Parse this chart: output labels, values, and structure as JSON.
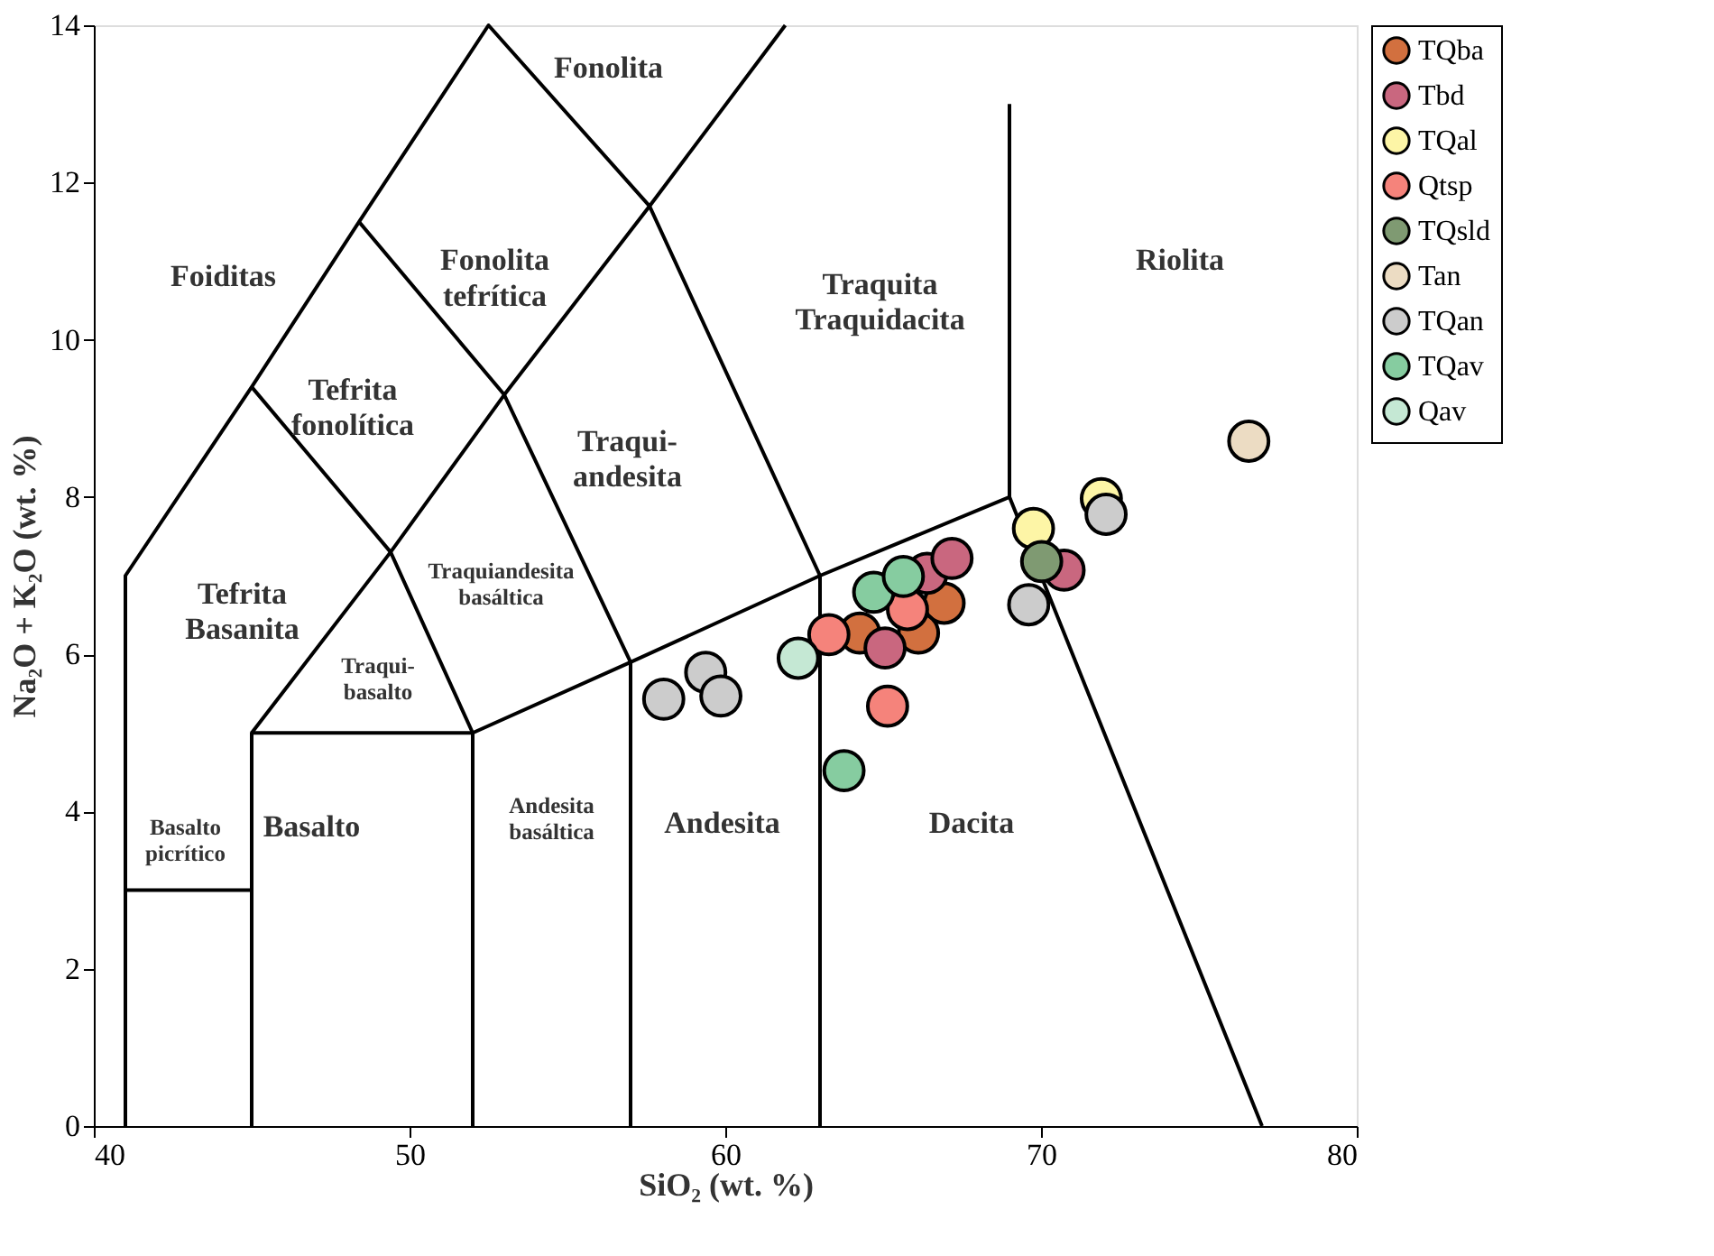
{
  "chart_data": {
    "type": "scatter",
    "xlabel": "SiO₂ (wt. %)",
    "ylabel": "Na₂O + K₂O (wt. %)",
    "xlim": [
      40,
      80
    ],
    "ylim": [
      0,
      14
    ],
    "xticks": [
      40,
      50,
      60,
      70,
      80
    ],
    "yticks": [
      0,
      2,
      4,
      6,
      8,
      10,
      12,
      14
    ],
    "grid": false,
    "legend": "right",
    "marker": "circle",
    "series": [
      {
        "type": "line",
        "marker": "none",
        "color": "#000000",
        "x": [
          41,
          41,
          45,
          48.4,
          52.5,
          57.6,
          61.9
        ],
        "values": [
          0,
          7,
          9.4,
          11.5,
          14,
          11.7,
          14
        ]
      },
      {
        "type": "line",
        "marker": "none",
        "color": "#000000",
        "x": [
          41,
          45
        ],
        "values": [
          3,
          3
        ]
      },
      {
        "type": "line",
        "marker": "none",
        "color": "#000000",
        "x": [
          45,
          45,
          52,
          52
        ],
        "values": [
          0,
          5,
          5,
          0
        ]
      },
      {
        "type": "line",
        "marker": "none",
        "color": "#000000",
        "x": [
          45,
          49.4,
          52,
          57,
          63,
          69
        ],
        "values": [
          5,
          7.3,
          5,
          5.9,
          7,
          8
        ]
      },
      {
        "type": "line",
        "marker": "none",
        "color": "#000000",
        "x": [
          45,
          49.4,
          53,
          57,
          57
        ],
        "values": [
          9.4,
          7.3,
          9.3,
          5.9,
          0
        ]
      },
      {
        "type": "line",
        "marker": "none",
        "color": "#000000",
        "x": [
          48.4,
          53,
          57.6,
          63,
          63
        ],
        "values": [
          11.5,
          9.3,
          11.7,
          7,
          0
        ]
      },
      {
        "type": "line",
        "marker": "none",
        "color": "#000000",
        "x": [
          69,
          69,
          77
        ],
        "values": [
          13,
          8,
          0
        ]
      },
      {
        "name": "TQba",
        "color": "#d2703f",
        "x": [
          64.26,
          66.93,
          66.12
        ],
        "values": [
          6.27,
          6.65,
          6.27
        ]
      },
      {
        "name": "Tbd",
        "color": "#c9677f",
        "x": [
          65.06,
          66.39,
          67.18,
          70.73
        ],
        "values": [
          6.08,
          7.03,
          7.22,
          7.07
        ]
      },
      {
        "name": "TQal",
        "color": "#fdf5a6",
        "x": [
          69.76,
          71.91
        ],
        "values": [
          7.6,
          7.98
        ]
      },
      {
        "name": "Qtsp",
        "color": "#f5837b",
        "x": [
          63.28,
          65.77,
          65.14
        ],
        "values": [
          6.25,
          6.57,
          5.34
        ]
      },
      {
        "name": "TQsld",
        "color": "#7f9a72",
        "x": [
          70.02
        ],
        "values": [
          7.18
        ]
      },
      {
        "name": "Tan",
        "color": "#ecdcc3",
        "x": [
          76.58
        ],
        "values": [
          8.71
        ]
      },
      {
        "name": "TQan",
        "color": "#cccccc",
        "x": [
          58.05,
          59.38,
          59.86,
          69.61,
          72.06
        ],
        "values": [
          5.43,
          5.77,
          5.47,
          6.63,
          7.78
        ]
      },
      {
        "name": "TQav",
        "color": "#86cca0",
        "x": [
          64.7,
          65.64,
          63.76
        ],
        "values": [
          6.79,
          6.99,
          4.52
        ]
      },
      {
        "name": "Qav",
        "color": "#c5e8d4",
        "x": [
          62.31
        ],
        "values": [
          5.95
        ]
      }
    ],
    "annotations": [
      "Foiditas",
      "Fonolita",
      "Fonolita\ntefrítica",
      "Tefrita\nfonolítica",
      "Traquita\nTraquidacita",
      "Riolita",
      "Traqui-\nandesita",
      "Tefrita\nBasanita",
      "Traquiandesita\nbasáltica",
      "Traqui-\nbasalto",
      "Basalto\npicrítico",
      "Basalto",
      "Andesita\nbasáltica",
      "Andesita",
      "Dacita"
    ]
  }
}
